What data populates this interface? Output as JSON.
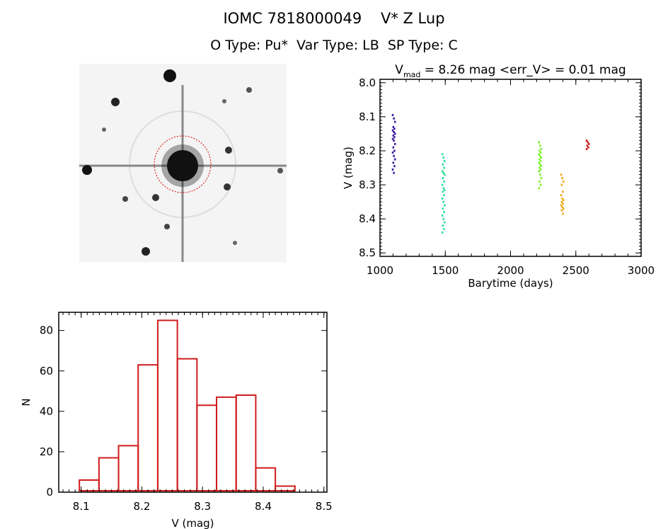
{
  "header": {
    "title": "IOMC 7818000049    V* Z Lup",
    "subtitle": "O Type: Pu*  Var Type: LB  SP Type: C"
  },
  "chart_data": [
    {
      "type": "scatter",
      "title_main": "V",
      "title_sub": "mad",
      "title_rest": " = 8.26 mag <err_V> = 0.01 mag",
      "xlabel": "Barytime (days)",
      "ylabel": "V (mag)",
      "xlim": [
        1000,
        3000
      ],
      "ylim": [
        8.51,
        7.99
      ],
      "xticks": [
        1000,
        1500,
        2000,
        2500,
        3000
      ],
      "yticks": [
        "8.0",
        "8.1",
        "8.2",
        "8.3",
        "8.4",
        "8.5"
      ],
      "series": [
        {
          "name": "group1",
          "color": "#3a1aa0",
          "x": 1105,
          "values": [
            8.095,
            8.105,
            8.115,
            8.13,
            8.135,
            8.14,
            8.145,
            8.15,
            8.155,
            8.16,
            8.165,
            8.17,
            8.18,
            8.19,
            8.2,
            8.205,
            8.215,
            8.225,
            8.235,
            8.245,
            8.255,
            8.265
          ]
        },
        {
          "name": "group2",
          "color": "#2adf9a",
          "x": 1485,
          "values": [
            8.21,
            8.22,
            8.23,
            8.24,
            8.25,
            8.26,
            8.265,
            8.27,
            8.28,
            8.29,
            8.3,
            8.31,
            8.315,
            8.32,
            8.33,
            8.34,
            8.35,
            8.36,
            8.37,
            8.38,
            8.39,
            8.4,
            8.41,
            8.42,
            8.43,
            8.44
          ]
        },
        {
          "name": "group3",
          "color": "#7ef02a",
          "x": 2225,
          "values": [
            8.175,
            8.185,
            8.195,
            8.2,
            8.205,
            8.21,
            8.215,
            8.22,
            8.225,
            8.23,
            8.235,
            8.24,
            8.245,
            8.25,
            8.255,
            8.26,
            8.27,
            8.28,
            8.29,
            8.3,
            8.31
          ]
        },
        {
          "name": "group4",
          "color": "#f0a818",
          "x": 2395,
          "values": [
            8.27,
            8.28,
            8.29,
            8.3,
            8.32,
            8.33,
            8.34,
            8.345,
            8.35,
            8.355,
            8.36,
            8.365,
            8.37,
            8.375,
            8.385
          ]
        },
        {
          "name": "group5",
          "color": "#c81e1e",
          "x": 2590,
          "values": [
            8.17,
            8.175,
            8.18,
            8.185,
            8.19,
            8.195
          ]
        }
      ]
    },
    {
      "type": "bar",
      "subtype": "histogram",
      "xlabel": "V (mag)",
      "ylabel": "N",
      "xlim": [
        8.063,
        8.505
      ],
      "ylim": [
        0,
        89
      ],
      "xticks": [
        "8.1",
        "8.2",
        "8.3",
        "8.4",
        "8.5"
      ],
      "yticks": [
        "0",
        "20",
        "40",
        "60",
        "80"
      ],
      "bin_start": 8.097,
      "bin_width": 0.0323,
      "values": [
        6,
        17,
        23,
        63,
        85,
        66,
        43,
        47,
        48,
        12,
        3
      ],
      "color": "#d01c1c"
    }
  ]
}
